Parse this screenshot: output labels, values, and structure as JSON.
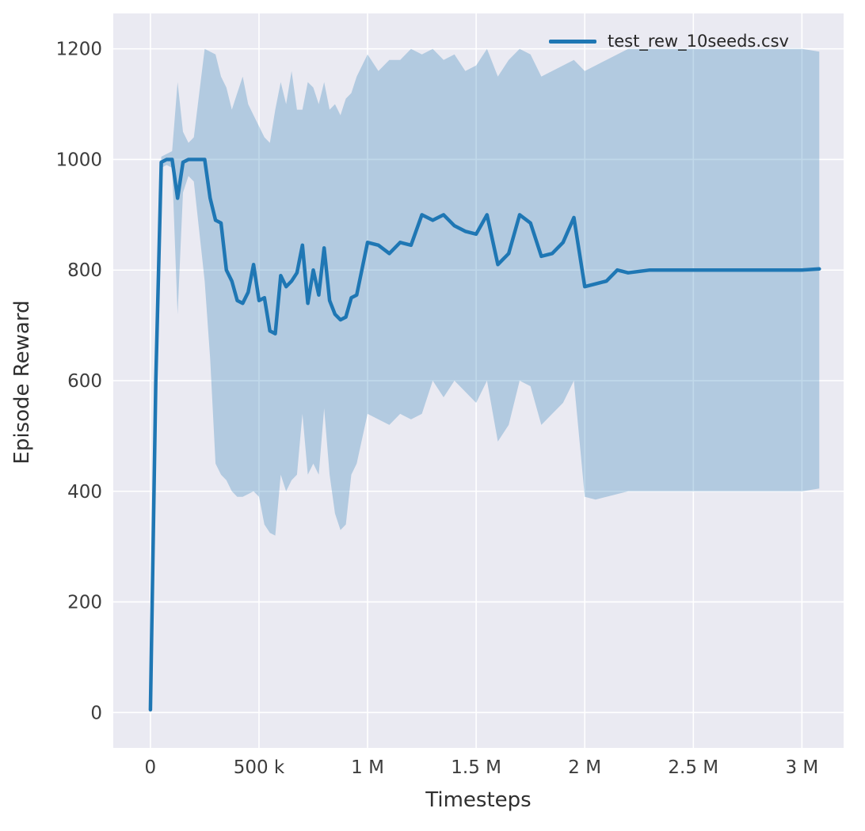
{
  "figure": {
    "background": "#ffffff",
    "plot_background": "#eaeaf2",
    "grid_color": "#ffffff",
    "tick_color": "#3d3d3d",
    "label_color": "#303030"
  },
  "legend": {
    "label": "test_rew_10seeds.csv"
  },
  "chart_data": {
    "type": "line",
    "title": "",
    "xlabel": "Timesteps",
    "ylabel": "Episode Reward",
    "grid": true,
    "legend_position": "upper right",
    "line_color": "#1f77b4",
    "band_color": "rgba(31,119,180,0.28)",
    "xlim": [
      -171000,
      3192000
    ],
    "ylim": [
      -64,
      1264
    ],
    "x_ticks": [
      {
        "value": 0,
        "label": "0"
      },
      {
        "value": 500000,
        "label": "500 k"
      },
      {
        "value": 1000000,
        "label": "1 M"
      },
      {
        "value": 1500000,
        "label": "1.5 M"
      },
      {
        "value": 2000000,
        "label": "2 M"
      },
      {
        "value": 2500000,
        "label": "2.5 M"
      },
      {
        "value": 3000000,
        "label": "3 M"
      }
    ],
    "y_ticks": [
      {
        "value": 0,
        "label": "0"
      },
      {
        "value": 200,
        "label": "200"
      },
      {
        "value": 400,
        "label": "400"
      },
      {
        "value": 600,
        "label": "600"
      },
      {
        "value": 800,
        "label": "800"
      },
      {
        "value": 1000,
        "label": "1000"
      },
      {
        "value": 1200,
        "label": "1200"
      }
    ],
    "series": [
      {
        "name": "test_rew_10seeds.csv",
        "x": [
          0,
          25000,
          50000,
          75000,
          100000,
          125000,
          150000,
          175000,
          200000,
          250000,
          275000,
          300000,
          325000,
          350000,
          375000,
          400000,
          425000,
          450000,
          475000,
          500000,
          525000,
          550000,
          575000,
          600000,
          625000,
          650000,
          675000,
          700000,
          725000,
          750000,
          775000,
          800000,
          825000,
          850000,
          875000,
          900000,
          925000,
          950000,
          1000000,
          1050000,
          1100000,
          1150000,
          1200000,
          1250000,
          1300000,
          1350000,
          1400000,
          1450000,
          1500000,
          1550000,
          1600000,
          1650000,
          1700000,
          1750000,
          1800000,
          1850000,
          1900000,
          1950000,
          2000000,
          2050000,
          2100000,
          2150000,
          2200000,
          2300000,
          2400000,
          2500000,
          2600000,
          2700000,
          2800000,
          2900000,
          3000000,
          3080000
        ],
        "mean": [
          5,
          600,
          995,
          1000,
          1000,
          930,
          995,
          1000,
          1000,
          1000,
          930,
          890,
          885,
          800,
          780,
          745,
          740,
          760,
          810,
          745,
          750,
          690,
          685,
          790,
          770,
          780,
          795,
          845,
          740,
          800,
          755,
          840,
          745,
          720,
          710,
          715,
          750,
          755,
          850,
          845,
          830,
          850,
          845,
          900,
          890,
          900,
          880,
          870,
          865,
          900,
          810,
          830,
          900,
          885,
          825,
          830,
          850,
          895,
          770,
          775,
          780,
          800,
          795,
          800,
          800,
          800,
          800,
          800,
          800,
          800,
          800,
          802
        ],
        "lower": [
          0,
          550,
          985,
          990,
          985,
          720,
          940,
          970,
          960,
          780,
          640,
          450,
          430,
          420,
          400,
          390,
          390,
          395,
          400,
          390,
          340,
          325,
          320,
          430,
          400,
          420,
          430,
          540,
          430,
          450,
          430,
          550,
          430,
          360,
          330,
          340,
          430,
          450,
          540,
          530,
          520,
          540,
          530,
          540,
          600,
          570,
          600,
          580,
          560,
          600,
          490,
          520,
          600,
          590,
          520,
          540,
          560,
          600,
          390,
          385,
          390,
          395,
          400,
          400,
          400,
          400,
          400,
          400,
          400,
          400,
          400,
          405
        ],
        "upper": [
          10,
          650,
          1005,
          1010,
          1015,
          1140,
          1050,
          1030,
          1040,
          1200,
          1195,
          1190,
          1150,
          1130,
          1090,
          1120,
          1150,
          1100,
          1080,
          1060,
          1040,
          1030,
          1090,
          1140,
          1100,
          1160,
          1090,
          1090,
          1140,
          1130,
          1100,
          1140,
          1090,
          1100,
          1080,
          1110,
          1120,
          1150,
          1190,
          1160,
          1180,
          1180,
          1200,
          1190,
          1200,
          1180,
          1190,
          1160,
          1170,
          1200,
          1150,
          1180,
          1200,
          1190,
          1150,
          1160,
          1170,
          1180,
          1160,
          1170,
          1180,
          1190,
          1200,
          1200,
          1200,
          1200,
          1200,
          1200,
          1200,
          1200,
          1200,
          1195
        ]
      }
    ]
  }
}
